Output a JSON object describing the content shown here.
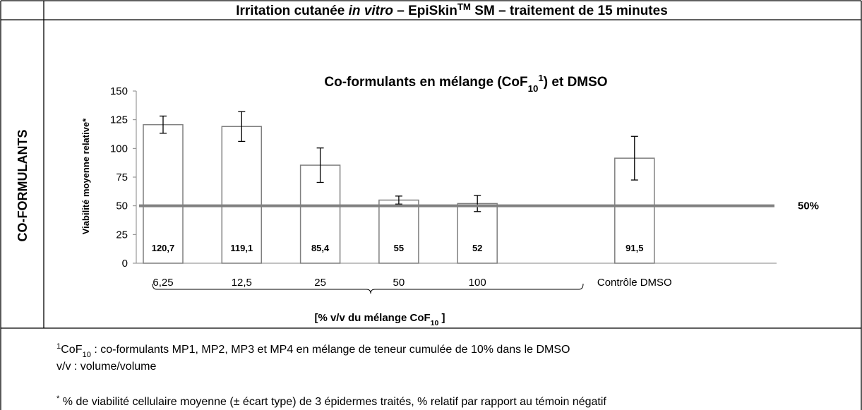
{
  "header": {
    "title_parts": [
      "Irritation cutanée ",
      "in vitro",
      " – EpiSkin",
      "TM",
      " SM – traitement de 15 minutes"
    ]
  },
  "row_label": "CO-FORMULANTS",
  "chart_data": {
    "type": "bar",
    "title_parts": [
      "Co-formulants en mélange (CoF",
      "10",
      "1",
      ") et DMSO"
    ],
    "y_label": "Viabilité moyenne relative*",
    "categories": [
      "6,25",
      "12,5",
      "25",
      "50",
      "100",
      "Contrôle DMSO"
    ],
    "values": [
      120.7,
      119.1,
      85.4,
      55,
      52,
      91.5
    ],
    "value_labels": [
      "120,7",
      "119,1",
      "85,4",
      "55",
      "52",
      "91,5"
    ],
    "errors": [
      7.5,
      13,
      15,
      3.5,
      7,
      19
    ],
    "ylim": [
      0,
      150
    ],
    "yticks": [
      0,
      25,
      50,
      75,
      100,
      125,
      150
    ],
    "reference_line": {
      "value": 50,
      "label": "50%"
    },
    "group_label_parts": [
      "[% v/v du mélange CoF",
      "10",
      " ]"
    ],
    "bar_color": "#ffffff",
    "bar_edge": "#7f7f7f",
    "reference_color": "#808080"
  },
  "footnotes": [
    [
      "1",
      "CoF",
      "10",
      " : co-formulants MP1, MP2, MP3 et MP4 en mélange de teneur cumulée de 10% dans le DMSO"
    ],
    [
      "v/v : volume/volume"
    ],
    [
      "*",
      " % de viabilité cellulaire moyenne (± écart type) de 3 épidermes traités, % relatif par rapport au témoin négatif"
    ]
  ]
}
